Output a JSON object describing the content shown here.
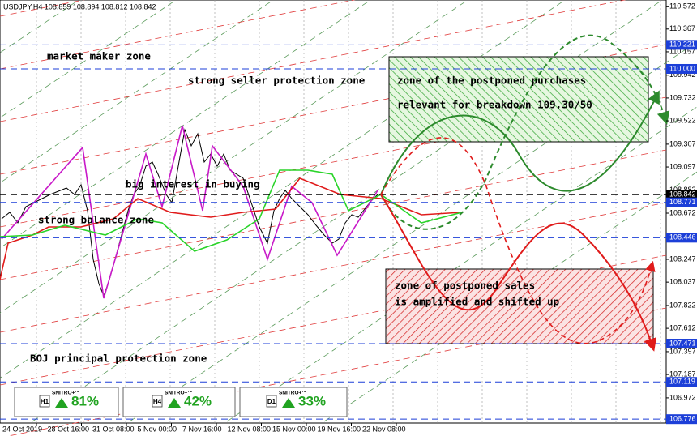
{
  "chart_data": {
    "type": "candlestick",
    "title": "USDJPY,H4  108.859 108.894 108.812 108.842",
    "ylim": [
      106.755,
      110.634
    ],
    "yticks": [
      110.572,
      110.367,
      110.157,
      109.942,
      109.732,
      109.522,
      109.307,
      109.097,
      108.882,
      108.672,
      108.457,
      108.247,
      108.037,
      107.822,
      107.612,
      107.397,
      107.187,
      106.972,
      106.762
    ],
    "levels": [
      {
        "value": 110.221,
        "color": "#1c3fd8"
      },
      {
        "value": 110,
        "label": "110.000",
        "color": "#1c3fd8"
      },
      {
        "value": 108.842,
        "color": "#000000"
      },
      {
        "value": 108.771,
        "color": "#1c3fd8"
      },
      {
        "value": 108.446,
        "color": "#1c3fd8"
      },
      {
        "value": 107.471,
        "color": "#1c3fd8"
      },
      {
        "value": 107.119,
        "color": "#1c3fd8"
      },
      {
        "value": 106.776,
        "color": "#1c3fd8"
      }
    ],
    "categories": [
      "24 Oct 2019",
      "28 Oct 16:00",
      "31 Oct 08:00",
      "5 Nov 00:00",
      "7 Nov 16:00",
      "12 Nov 08:00",
      "15 Nov 00:00",
      "19 Nov 16:00",
      "22 Nov 08:00"
    ],
    "annotations": [
      "market maker zone",
      "strong seller protection zone",
      "zone of the postponed purchases",
      "relevant for breakdown 109,30/50",
      "big interest in buying",
      "strong balance zone",
      "zone of postponed sales",
      "is amplified and shifted up",
      "BOJ principal protection zone"
    ],
    "widgets": [
      {
        "timeframe": "H1",
        "brand": "SNITRO+™",
        "value": "81%"
      },
      {
        "timeframe": "H4",
        "brand": "SNITRO+™",
        "value": "42%"
      },
      {
        "timeframe": "D1",
        "brand": "SNITRO+™",
        "value": "33%"
      }
    ]
  }
}
